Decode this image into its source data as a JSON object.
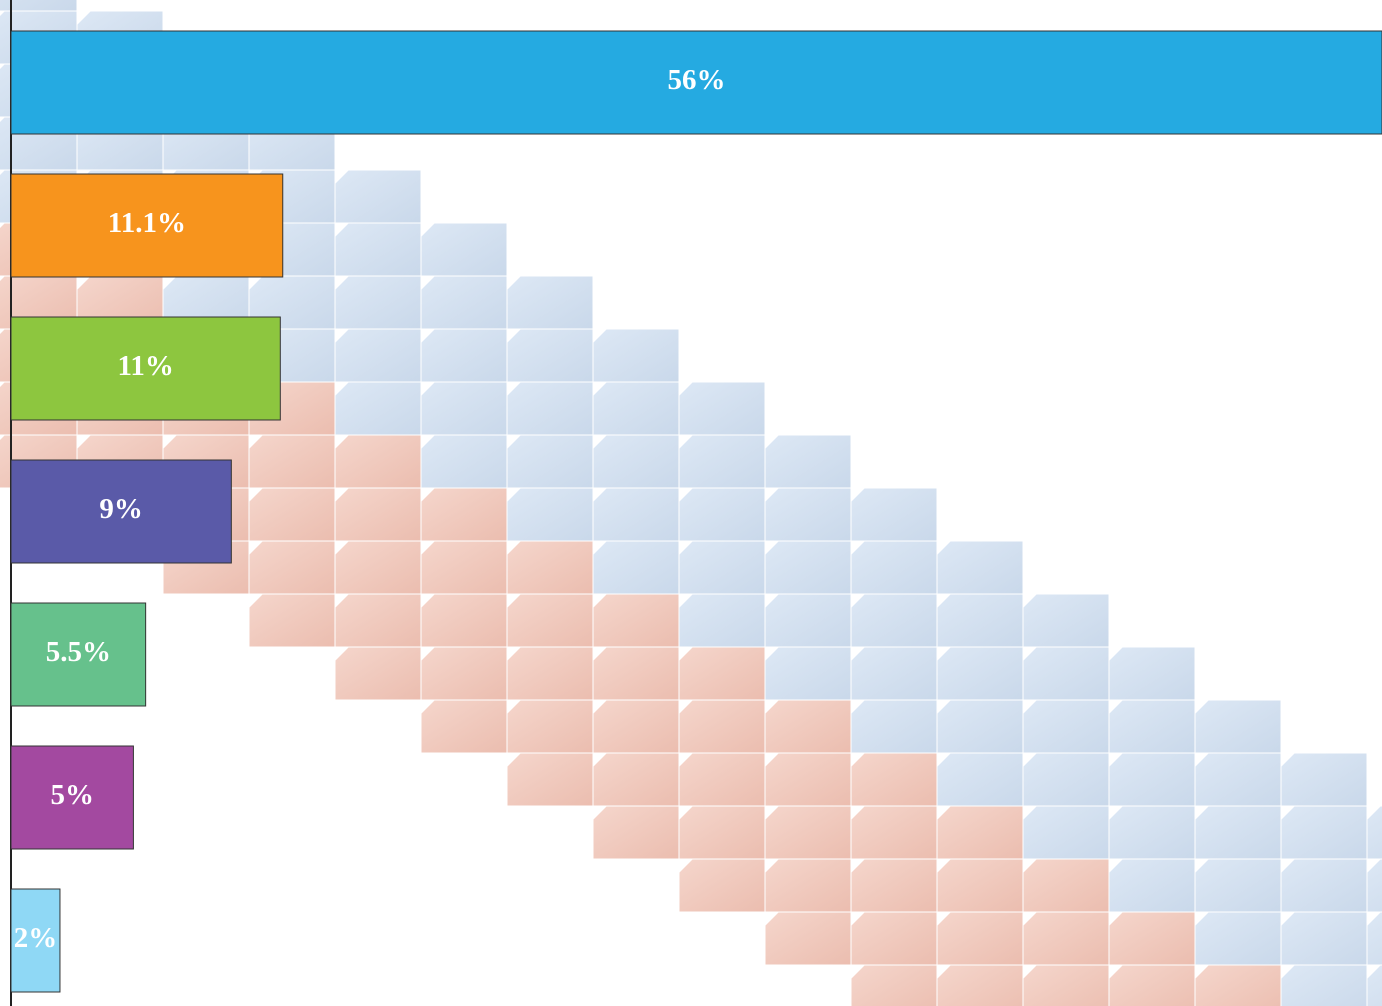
{
  "chart_data": {
    "type": "bar",
    "orientation": "horizontal",
    "categories": [
      null,
      null,
      null,
      null,
      null,
      null,
      null
    ],
    "values": [
      56,
      11.1,
      11,
      9,
      5.5,
      5,
      2
    ],
    "value_labels": [
      "56%",
      "11.1%",
      "11%",
      "9%",
      "5.5%",
      "5%",
      "2%"
    ],
    "colors": [
      "#25aae1",
      "#f7941d",
      "#8dc63f",
      "#5a5aa8",
      "#66c18c",
      "#a349a0",
      "#8fd8f5"
    ],
    "xlim": [
      0,
      56
    ]
  }
}
